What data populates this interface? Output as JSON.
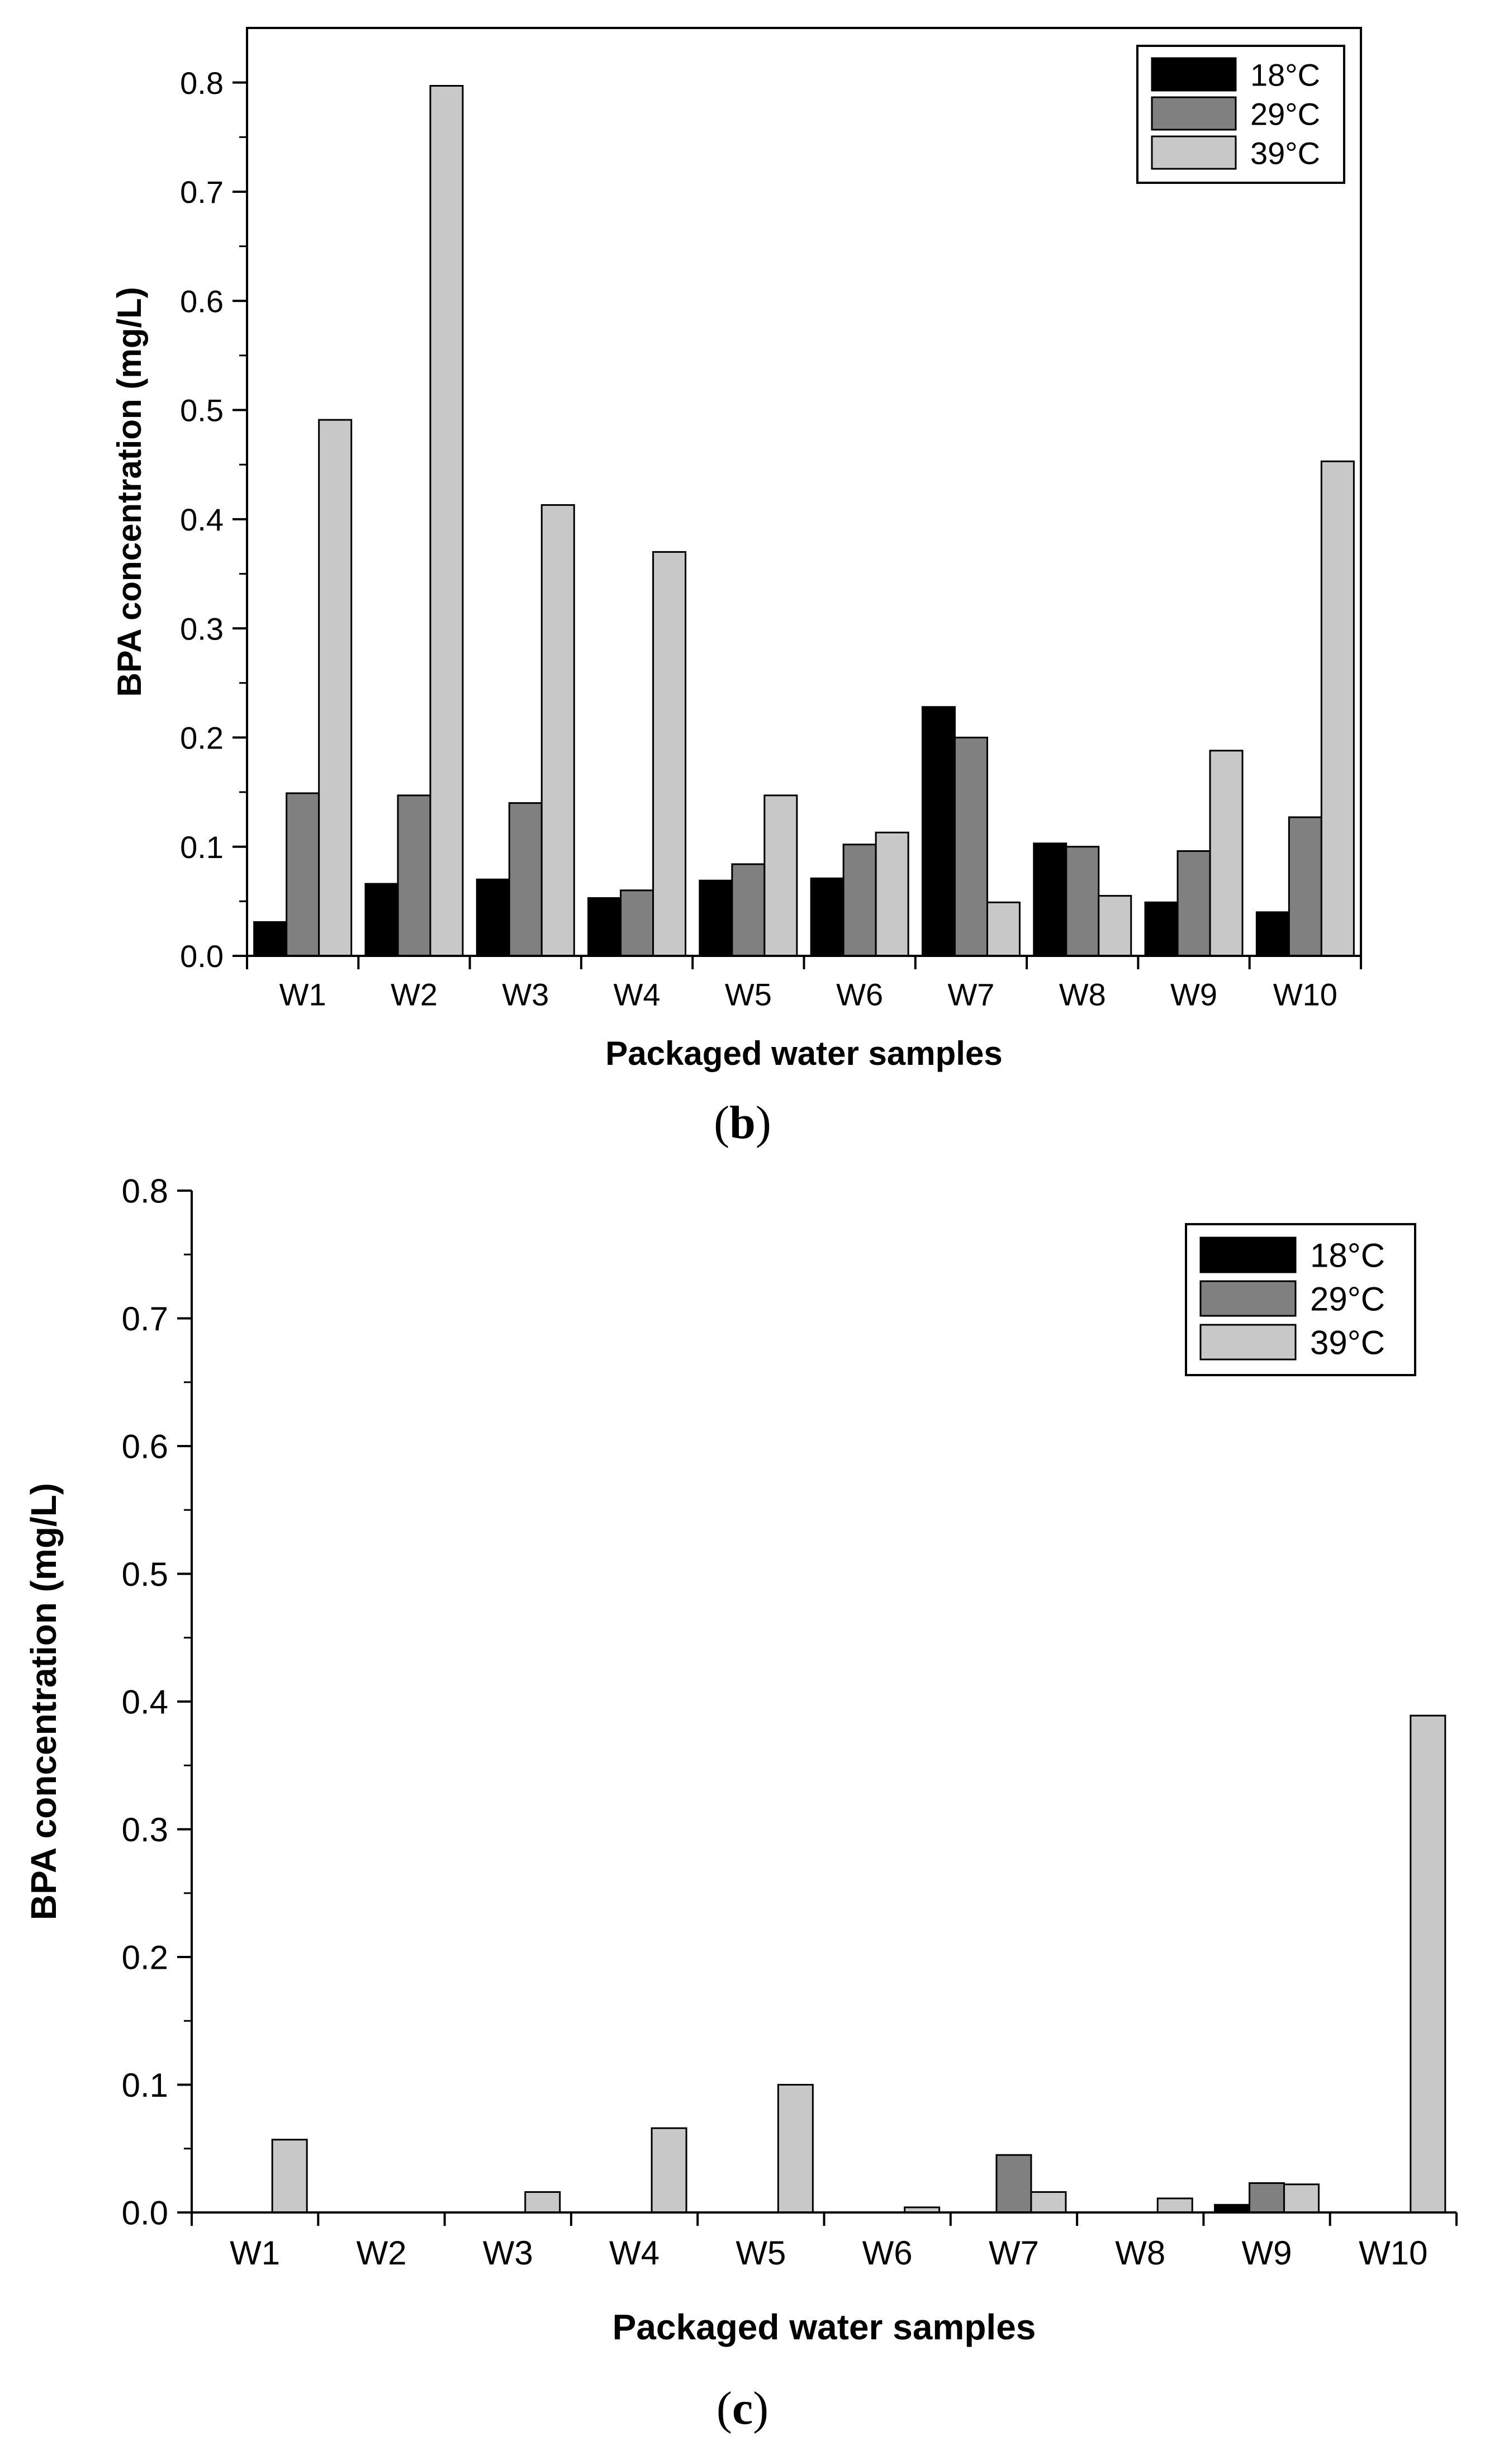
{
  "chart_data": [
    {
      "type": "bar",
      "panel_label": "b",
      "categories": [
        "W1",
        "W2",
        "W3",
        "W4",
        "W5",
        "W6",
        "W7",
        "W8",
        "W9",
        "W10"
      ],
      "series": [
        {
          "name": "18°C",
          "color": "#000000",
          "values": [
            0.031,
            0.066,
            0.07,
            0.053,
            0.069,
            0.071,
            0.228,
            0.103,
            0.049,
            0.04
          ]
        },
        {
          "name": "29°C",
          "color": "#808080",
          "values": [
            0.149,
            0.147,
            0.14,
            0.06,
            0.084,
            0.102,
            0.2,
            0.1,
            0.096,
            0.127
          ]
        },
        {
          "name": "39°C",
          "color": "#c8c8c8",
          "values": [
            0.491,
            0.797,
            0.413,
            0.37,
            0.147,
            0.113,
            0.049,
            0.055,
            0.188,
            0.453
          ]
        }
      ],
      "xlabel": "Packaged water samples",
      "ylabel": "BPA concentration (mg/L)",
      "ylim": [
        0.0,
        0.85
      ],
      "yticks": [
        0.0,
        0.1,
        0.2,
        0.3,
        0.4,
        0.5,
        0.6,
        0.7,
        0.8
      ],
      "ytick_labels": [
        "0.0",
        "0.1",
        "0.2",
        "0.3",
        "0.4",
        "0.5",
        "0.6",
        "0.7",
        "0.8"
      ],
      "legend": "top-right",
      "grid": false
    },
    {
      "type": "bar",
      "panel_label": "c",
      "categories": [
        "W1",
        "W2",
        "W3",
        "W4",
        "W5",
        "W6",
        "W7",
        "W8",
        "W9",
        "W10"
      ],
      "series": [
        {
          "name": "18°C",
          "color": "#000000",
          "values": [
            0,
            0,
            0,
            0,
            0,
            0,
            0,
            0,
            0.006,
            0
          ]
        },
        {
          "name": "29°C",
          "color": "#808080",
          "values": [
            0,
            0,
            0,
            0,
            0,
            0,
            0.045,
            0,
            0.023,
            0
          ]
        },
        {
          "name": "39°C",
          "color": "#c8c8c8",
          "values": [
            0.057,
            0,
            0.016,
            0.066,
            0.1,
            0.004,
            0.016,
            0.011,
            0.022,
            0.389
          ]
        }
      ],
      "xlabel": "Packaged water samples",
      "ylabel": "BPA concentration (mg/L)",
      "ylim": [
        0.0,
        0.8
      ],
      "yticks": [
        0.0,
        0.1,
        0.2,
        0.3,
        0.4,
        0.5,
        0.6,
        0.7,
        0.8
      ],
      "ytick_labels": [
        "0.0",
        "0.1",
        "0.2",
        "0.3",
        "0.4",
        "0.5",
        "0.6",
        "0.7",
        "0.8"
      ],
      "legend": "top-right",
      "grid": false
    }
  ]
}
